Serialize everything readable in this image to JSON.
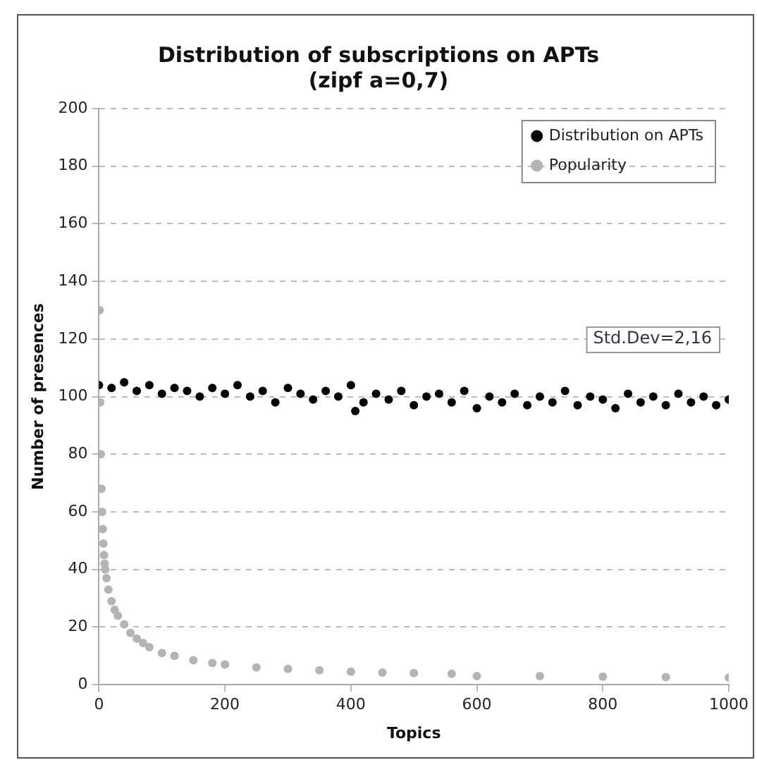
{
  "chart_data": {
    "type": "scatter",
    "title": "Distribution of subscriptions on APTs\n(zipf a=0,7)",
    "xlabel": "Topics",
    "ylabel": "Number of presences",
    "xlim": [
      0,
      1000
    ],
    "xticks": [
      0,
      200,
      400,
      600,
      800,
      1000
    ],
    "ylim": [
      0,
      200
    ],
    "yticks": [
      0,
      20,
      40,
      60,
      80,
      100,
      120,
      140,
      160,
      180,
      200
    ],
    "grid": "y",
    "legend": "top right",
    "marker": "circle",
    "annotations": [
      "Std.Dev=2,16"
    ],
    "series": [
      {
        "name": "Distribution on APTs",
        "color": "#000000",
        "x": [
          0,
          20,
          40,
          60,
          80,
          100,
          120,
          140,
          160,
          180,
          200,
          220,
          240,
          260,
          280,
          300,
          320,
          340,
          360,
          380,
          400,
          407,
          420,
          440,
          460,
          480,
          500,
          520,
          540,
          560,
          580,
          600,
          620,
          640,
          660,
          680,
          700,
          720,
          740,
          760,
          780,
          800,
          820,
          840,
          860,
          880,
          900,
          920,
          940,
          960,
          980,
          1000
        ],
        "values": [
          104,
          103,
          105,
          102,
          104,
          101,
          103,
          102,
          100,
          103,
          101,
          104,
          100,
          102,
          98,
          103,
          101,
          99,
          102,
          100,
          104,
          95,
          98,
          101,
          99,
          102,
          97,
          100,
          101,
          98,
          102,
          96,
          100,
          98,
          101,
          97,
          100,
          98,
          102,
          97,
          100,
          99,
          96,
          101,
          98,
          100,
          97,
          101,
          98,
          100,
          97,
          99
        ]
      },
      {
        "name": "Popularity",
        "color": "#b4b4b4",
        "x": [
          1,
          2,
          3,
          4,
          5,
          6,
          7,
          8,
          9,
          10,
          12,
          15,
          20,
          25,
          30,
          40,
          50,
          60,
          70,
          80,
          100,
          120,
          150,
          180,
          200,
          250,
          300,
          350,
          400,
          450,
          500,
          560,
          600,
          700,
          800,
          900,
          1000
        ],
        "values": [
          130,
          98,
          80,
          68,
          60,
          54,
          49,
          45,
          42,
          40,
          37,
          33,
          29,
          26,
          24,
          21,
          18,
          16,
          14.5,
          13,
          11,
          10,
          8.5,
          7.5,
          7,
          6,
          5.5,
          5,
          4.5,
          4.2,
          4,
          3.8,
          3,
          3,
          2.8,
          2.6,
          2.5
        ]
      }
    ]
  }
}
